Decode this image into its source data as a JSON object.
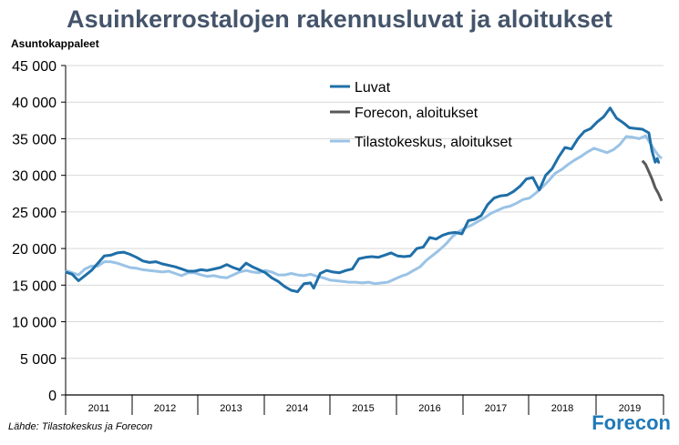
{
  "header": {
    "title": "Asuinkerrostalojen rakennusluvat ja aloitukset",
    "unit_label": "Asuntokappaleet"
  },
  "footer": {
    "source": "Lähde: Tilastokeskus  ja Forecon",
    "brand": "Forecon"
  },
  "chart_data": {
    "type": "line",
    "ylim": [
      0,
      45000
    ],
    "yticks": [
      0,
      5000,
      10000,
      15000,
      20000,
      25000,
      30000,
      35000,
      40000,
      45000
    ],
    "ytick_labels": [
      "0",
      "5 000",
      "10 000",
      "15 000",
      "20 000",
      "25 000",
      "30 000",
      "35 000",
      "40 000",
      "45 000"
    ],
    "xlim": [
      2010.5,
      2019.75
    ],
    "year_labels": [
      "2011",
      "2012",
      "2013",
      "2014",
      "2015",
      "2016",
      "2017",
      "2018",
      "2019"
    ],
    "grid": true,
    "legend_position": "top-right",
    "colors": {
      "luvat": "#1f6fa8",
      "forecon": "#595959",
      "tilastokeskus": "#9ac3e6",
      "grid": "#d9d9d9",
      "axis": "#000000"
    },
    "series": [
      {
        "name": "Luvat",
        "color": "#1f6fa8",
        "points": [
          [
            2010.5,
            16800
          ],
          [
            2010.6,
            16500
          ],
          [
            2010.7,
            15600
          ],
          [
            2010.8,
            16300
          ],
          [
            2010.9,
            17000
          ],
          [
            2011.0,
            18000
          ],
          [
            2011.1,
            19000
          ],
          [
            2011.2,
            19100
          ],
          [
            2011.3,
            19400
          ],
          [
            2011.4,
            19500
          ],
          [
            2011.5,
            19200
          ],
          [
            2011.6,
            18800
          ],
          [
            2011.7,
            18300
          ],
          [
            2011.8,
            18100
          ],
          [
            2011.9,
            18200
          ],
          [
            2012.0,
            17900
          ],
          [
            2012.1,
            17700
          ],
          [
            2012.2,
            17500
          ],
          [
            2012.3,
            17200
          ],
          [
            2012.4,
            16900
          ],
          [
            2012.5,
            16900
          ],
          [
            2012.6,
            17100
          ],
          [
            2012.7,
            17000
          ],
          [
            2012.8,
            17200
          ],
          [
            2012.9,
            17400
          ],
          [
            2013.0,
            17800
          ],
          [
            2013.1,
            17400
          ],
          [
            2013.2,
            17100
          ],
          [
            2013.3,
            18000
          ],
          [
            2013.4,
            17500
          ],
          [
            2013.5,
            17100
          ],
          [
            2013.6,
            16700
          ],
          [
            2013.7,
            16000
          ],
          [
            2013.8,
            15500
          ],
          [
            2013.9,
            14800
          ],
          [
            2014.0,
            14300
          ],
          [
            2014.1,
            14100
          ],
          [
            2014.2,
            15200
          ],
          [
            2014.3,
            15300
          ],
          [
            2014.35,
            14600
          ],
          [
            2014.45,
            16600
          ],
          [
            2014.55,
            17000
          ],
          [
            2014.65,
            16800
          ],
          [
            2014.75,
            16700
          ],
          [
            2014.85,
            17000
          ],
          [
            2014.95,
            17200
          ],
          [
            2015.05,
            18600
          ],
          [
            2015.15,
            18800
          ],
          [
            2015.25,
            18900
          ],
          [
            2015.35,
            18800
          ],
          [
            2015.45,
            19100
          ],
          [
            2015.55,
            19400
          ],
          [
            2015.65,
            19000
          ],
          [
            2015.75,
            18900
          ],
          [
            2015.85,
            19000
          ],
          [
            2015.95,
            20000
          ],
          [
            2016.05,
            20200
          ],
          [
            2016.15,
            21500
          ],
          [
            2016.25,
            21300
          ],
          [
            2016.35,
            21800
          ],
          [
            2016.45,
            22100
          ],
          [
            2016.55,
            22200
          ],
          [
            2016.65,
            22000
          ],
          [
            2016.75,
            23800
          ],
          [
            2016.85,
            24000
          ],
          [
            2016.95,
            24500
          ],
          [
            2017.05,
            26000
          ],
          [
            2017.15,
            26900
          ],
          [
            2017.25,
            27200
          ],
          [
            2017.35,
            27300
          ],
          [
            2017.45,
            27800
          ],
          [
            2017.55,
            28500
          ],
          [
            2017.65,
            29500
          ],
          [
            2017.75,
            29700
          ],
          [
            2017.85,
            28000
          ],
          [
            2017.95,
            30000
          ],
          [
            2018.05,
            30900
          ],
          [
            2018.15,
            32500
          ],
          [
            2018.25,
            33800
          ],
          [
            2018.35,
            33600
          ],
          [
            2018.45,
            35000
          ],
          [
            2018.55,
            36000
          ],
          [
            2018.65,
            36400
          ],
          [
            2018.75,
            37300
          ],
          [
            2018.85,
            38000
          ],
          [
            2018.95,
            39200
          ],
          [
            2019.05,
            37800
          ],
          [
            2019.15,
            37200
          ],
          [
            2019.25,
            36500
          ],
          [
            2019.35,
            36400
          ],
          [
            2019.45,
            36300
          ],
          [
            2019.55,
            35800
          ],
          [
            2019.6,
            33300
          ],
          [
            2019.65,
            31800
          ],
          [
            2019.68,
            32300
          ],
          [
            2019.7,
            31800
          ],
          [
            2019.72,
            31800
          ]
        ]
      },
      {
        "name": "Forecon, aloitukset",
        "color": "#595959",
        "points": []
      },
      {
        "name": "Tilastokeskus, aloitukset",
        "color": "#9ac3e6",
        "points": []
      }
    ]
  }
}
